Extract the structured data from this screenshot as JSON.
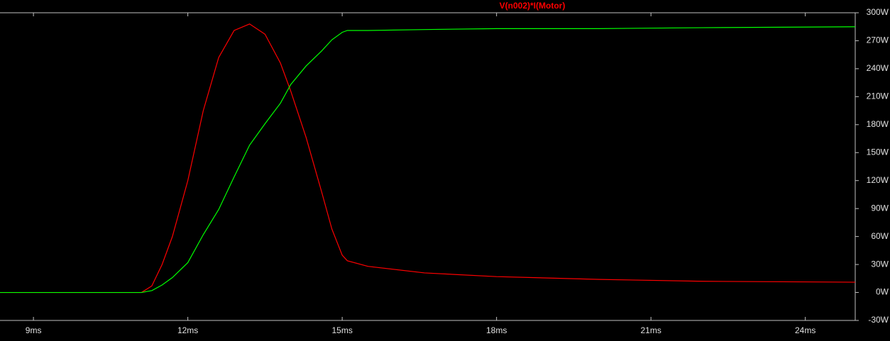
{
  "chart_data": {
    "type": "line",
    "x": [
      8.35,
      11.1,
      11.3,
      11.5,
      11.7,
      12.0,
      12.3,
      12.6,
      12.9,
      13.2,
      13.5,
      13.8,
      14.0,
      14.3,
      14.6,
      14.8,
      15.0,
      15.1,
      15.5,
      16.6,
      18.0,
      20.0,
      22.0,
      24.97
    ],
    "series": [
      {
        "name": "V(n002)*I(Motor)",
        "color": "#ff0000",
        "values": [
          0,
          0,
          7,
          30,
          60,
          120,
          195,
          252,
          281,
          288,
          277,
          246,
          216,
          166,
          108,
          68,
          40,
          34,
          28,
          21,
          17,
          14,
          12,
          11
        ]
      },
      {
        "color": "#00ff00",
        "values": [
          0,
          0,
          2,
          8,
          16,
          32,
          62,
          89,
          124,
          158,
          181,
          203,
          223,
          243,
          259,
          271,
          279,
          281,
          281,
          282,
          283,
          283,
          284,
          285
        ]
      }
    ],
    "xlim": [
      8.35,
      24.97
    ],
    "xticks": [
      {
        "value": 9,
        "label": "9ms"
      },
      {
        "value": 12,
        "label": "12ms"
      },
      {
        "value": 15,
        "label": "15ms"
      },
      {
        "value": 18,
        "label": "18ms"
      },
      {
        "value": 21,
        "label": "21ms"
      },
      {
        "value": 24,
        "label": "24ms"
      }
    ],
    "ylim": [
      -30,
      300
    ],
    "yticks": [
      {
        "value": -30,
        "label": "-30W"
      },
      {
        "value": 0,
        "label": "0W"
      },
      {
        "value": 30,
        "label": "30W"
      },
      {
        "value": 60,
        "label": "60W"
      },
      {
        "value": 90,
        "label": "90W"
      },
      {
        "value": 120,
        "label": "120W"
      },
      {
        "value": 150,
        "label": "150W"
      },
      {
        "value": 180,
        "label": "180W"
      },
      {
        "value": 210,
        "label": "210W"
      },
      {
        "value": 240,
        "label": "240W"
      },
      {
        "value": 270,
        "label": "270W"
      },
      {
        "value": 300,
        "label": "300W"
      }
    ],
    "grid": false
  }
}
